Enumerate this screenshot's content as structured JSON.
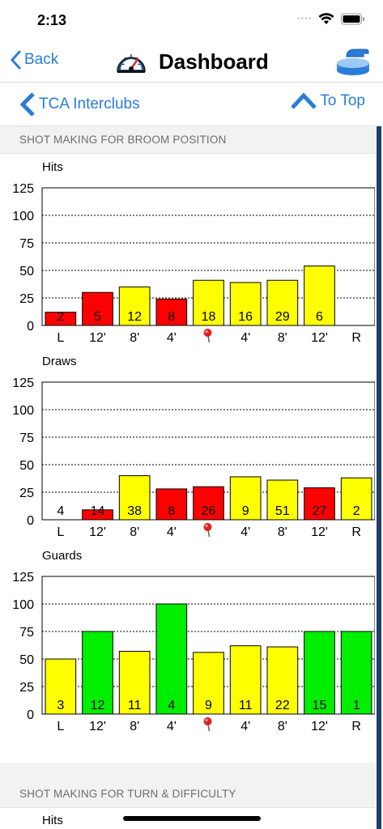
{
  "status_bar": {
    "time": "2:13",
    "signal_dots": "••••"
  },
  "nav": {
    "back_label": "Back",
    "title": "Dashboard"
  },
  "sub_nav": {
    "left_label": "TCA Interclubs",
    "right_label": "To Top"
  },
  "sections": [
    {
      "title": "SHOT MAKING FOR BROOM POSITION"
    },
    {
      "title": "SHOT MAKING FOR TURN & DIFFICULTY"
    }
  ],
  "colors": {
    "accent": "#2a7cdb",
    "red": "#ff0000",
    "yellow": "#ffff00",
    "green": "#00ee00",
    "scroll": "#1f3f6b"
  },
  "icons": {
    "back": "chevron-left-icon",
    "title": "speedometer-icon",
    "right": "curling-stone-icon",
    "to_top": "chevron-up-icon",
    "pin": "pin-icon"
  },
  "chart_data": [
    {
      "type": "bar",
      "title": "Hits",
      "categories": [
        "L",
        "12'",
        "8'",
        "4'",
        "pin",
        "4'",
        "8'",
        "12'",
        "R"
      ],
      "values": [
        12,
        30,
        35,
        24,
        41,
        39,
        41,
        54,
        null
      ],
      "labels": [
        "2",
        "5",
        "12",
        "8",
        "18",
        "16",
        "29",
        "6",
        ""
      ],
      "colors": [
        "red",
        "red",
        "yellow",
        "red",
        "yellow",
        "yellow",
        "yellow",
        "yellow",
        ""
      ],
      "ylim": [
        0,
        125
      ],
      "yticks": [
        0,
        25,
        50,
        75,
        100,
        125
      ],
      "grid": true
    },
    {
      "type": "bar",
      "title": "Draws",
      "categories": [
        "L",
        "12'",
        "8'",
        "4'",
        "pin",
        "4'",
        "8'",
        "12'",
        "R"
      ],
      "values": [
        0,
        9,
        40,
        28,
        30,
        39,
        36,
        29,
        38
      ],
      "labels": [
        "4",
        "14",
        "38",
        "8",
        "26",
        "9",
        "51",
        "27",
        "2"
      ],
      "colors": [
        "red",
        "red",
        "yellow",
        "red",
        "red",
        "yellow",
        "yellow",
        "red",
        "yellow"
      ],
      "ylim": [
        0,
        125
      ],
      "yticks": [
        0,
        25,
        50,
        75,
        100,
        125
      ],
      "grid": true
    },
    {
      "type": "bar",
      "title": "Guards",
      "categories": [
        "L",
        "12'",
        "8'",
        "4'",
        "pin",
        "4'",
        "8'",
        "12'",
        "R"
      ],
      "values": [
        50,
        75,
        57,
        100,
        56,
        62,
        61,
        75,
        75
      ],
      "labels": [
        "3",
        "12",
        "11",
        "4",
        "9",
        "11",
        "22",
        "15",
        "1"
      ],
      "colors": [
        "yellow",
        "green",
        "yellow",
        "green",
        "yellow",
        "yellow",
        "yellow",
        "green",
        "green"
      ],
      "ylim": [
        0,
        125
      ],
      "yticks": [
        0,
        25,
        50,
        75,
        100,
        125
      ],
      "grid": true
    },
    {
      "type": "bar",
      "title": "Hits",
      "categories": [],
      "values": [],
      "labels": [],
      "colors": []
    }
  ]
}
